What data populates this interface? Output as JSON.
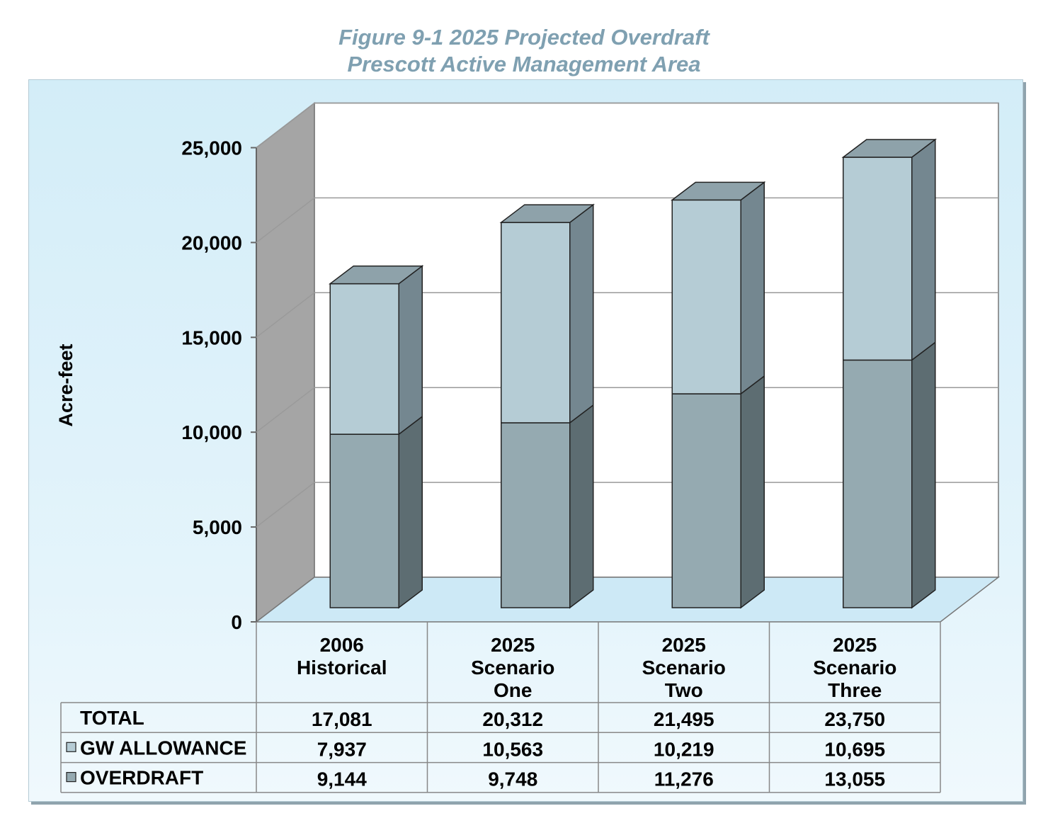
{
  "figure": {
    "title_line1": "Figure 9-1  2025 Projected Overdraft",
    "title_line2": "Prescott Active Management Area"
  },
  "chart_data": {
    "type": "bar",
    "stacked": true,
    "three_d": true,
    "ylabel": "Acre-feet",
    "ylim": [
      0,
      25000
    ],
    "y_ticks": [
      "0",
      "5,000",
      "10,000",
      "15,000",
      "20,000",
      "25,000"
    ],
    "categories": [
      [
        "2006",
        "Historical"
      ],
      [
        "2025",
        "Scenario",
        "One"
      ],
      [
        "2025",
        "Scenario",
        "Two"
      ],
      [
        "2025",
        "Scenario",
        "Three"
      ]
    ],
    "series": [
      {
        "name": "OVERDRAFT",
        "values": [
          9144,
          9748,
          11276,
          13055
        ],
        "color": "#95aab1",
        "side_color": "#5d6d72",
        "top_color": "#83969c"
      },
      {
        "name": "GW ALLOWANCE",
        "values": [
          7937,
          10563,
          10219,
          10695
        ],
        "color": "#b5ccd5",
        "side_color": "#748790",
        "top_color": "#8ea2aa"
      }
    ],
    "data_table": {
      "rows": [
        {
          "label": "TOTAL",
          "marker": false,
          "values": [
            "17,081",
            "20,312",
            "21,495",
            "23,750"
          ]
        },
        {
          "label": "GW ALLOWANCE",
          "marker": true,
          "marker_color": "#b5ccd5",
          "values": [
            "7,937",
            "10,563",
            "10,219",
            "10,695"
          ]
        },
        {
          "label": "OVERDRAFT",
          "marker": true,
          "marker_color": "#95aab1",
          "values": [
            "9,144",
            "9,748",
            "11,276",
            "13,055"
          ]
        }
      ]
    },
    "grid": true,
    "colors": {
      "back_wall": "#ffffff",
      "side_wall": "#a5a5a5",
      "floor": "#cde9f6",
      "gridline": "#9a9a9a"
    }
  }
}
